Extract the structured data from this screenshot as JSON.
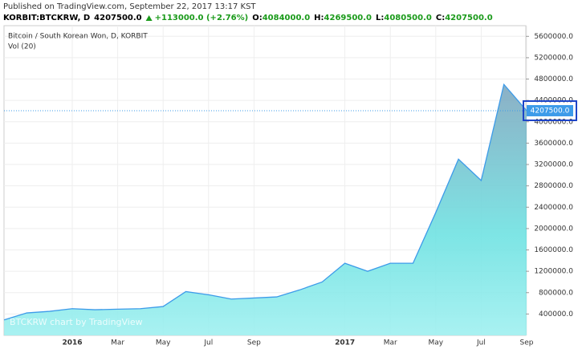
{
  "header": {
    "published": "Published on TradingView.com, September 22, 2017 13:17 KST",
    "symbol": "KORBIT:BTCKRW, D",
    "last": "4207500.0",
    "change": "+113000.0 (+2.76%)",
    "ohlc": [
      {
        "key": "O:",
        "value": "4084000.0"
      },
      {
        "key": "H:",
        "value": "4269500.0"
      },
      {
        "key": "L:",
        "value": "4080500.0"
      },
      {
        "key": "C:",
        "value": "4207500.0"
      }
    ]
  },
  "chart_data": {
    "type": "area",
    "title": "Bitcoin / South Korean Won, D, KORBIT",
    "subtitle": "Vol (20)",
    "watermark": "BTCKRW chart by TradingView",
    "x": [
      "2015-10",
      "2015-11",
      "2015-12",
      "2016-01",
      "2016-02",
      "2016-03",
      "2016-04",
      "2016-05",
      "2016-06",
      "2016-07",
      "2016-08",
      "2016-09",
      "2016-10",
      "2016-11",
      "2016-12",
      "2017-01",
      "2017-02",
      "2017-03",
      "2017-04",
      "2017-05",
      "2017-06",
      "2017-07",
      "2017-08",
      "2017-09"
    ],
    "series": [
      {
        "name": "BTCKRW",
        "color": "#3d9be9",
        "values": [
          290000,
          420000,
          450000,
          500000,
          480000,
          490000,
          500000,
          540000,
          820000,
          760000,
          680000,
          700000,
          720000,
          850000,
          1000000,
          1350000,
          1200000,
          1350000,
          1350000,
          2300000,
          3300000,
          2900000,
          4700000,
          4207500
        ]
      }
    ],
    "last_value": {
      "value": 4207500,
      "label": "4207500.0"
    },
    "ylim": [
      0,
      5800000
    ],
    "yticks": [
      {
        "value": 400000,
        "label": "400000.0"
      },
      {
        "value": 800000,
        "label": "800000.0"
      },
      {
        "value": 1200000,
        "label": "1200000.0"
      },
      {
        "value": 1600000,
        "label": "1600000.0"
      },
      {
        "value": 2000000,
        "label": "2000000.0"
      },
      {
        "value": 2400000,
        "label": "2400000.0"
      },
      {
        "value": 2800000,
        "label": "2800000.0"
      },
      {
        "value": 3200000,
        "label": "3200000.0"
      },
      {
        "value": 3600000,
        "label": "3600000.0"
      },
      {
        "value": 4000000,
        "label": "4000000.0"
      },
      {
        "value": 4400000,
        "label": "4400000.0"
      },
      {
        "value": 4800000,
        "label": "4800000.0"
      },
      {
        "value": 5200000,
        "label": "5200000.0"
      },
      {
        "value": 5600000,
        "label": "5600000.0"
      }
    ],
    "xticks": [
      {
        "value": "2016-01",
        "label": "2016"
      },
      {
        "value": "2016-03",
        "label": "Mar"
      },
      {
        "value": "2016-05",
        "label": "May"
      },
      {
        "value": "2016-07",
        "label": "Jul"
      },
      {
        "value": "2016-09",
        "label": "Sep"
      },
      {
        "value": "2017-01",
        "label": "2017"
      },
      {
        "value": "2017-03",
        "label": "Mar"
      },
      {
        "value": "2017-05",
        "label": "May"
      },
      {
        "value": "2017-07",
        "label": "Jul"
      },
      {
        "value": "2017-09",
        "label": "Sep"
      }
    ],
    "grid": true
  }
}
